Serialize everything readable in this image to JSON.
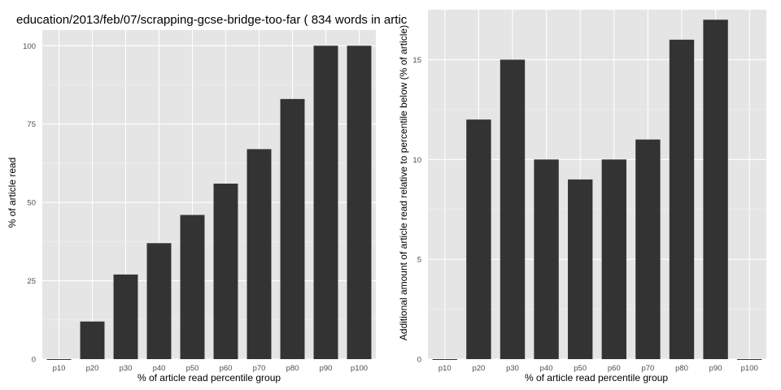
{
  "colors": {
    "panel_bg": "#e5e5e5",
    "grid_major": "#ffffff",
    "grid_minor": "#f2f2f2",
    "bar_fill": "#333333",
    "tick_text": "#4d4d4d"
  },
  "chart_data": [
    {
      "type": "bar",
      "title": "education/2013/feb/07/scrapping-gcse-bridge-too-far ( 834 words in artic",
      "xlabel": "% of article read percentile group",
      "ylabel": "% of article read",
      "categories": [
        "p10",
        "p20",
        "p30",
        "p40",
        "p50",
        "p60",
        "p70",
        "p80",
        "p90",
        "p100"
      ],
      "values": [
        0,
        12,
        27,
        37,
        46,
        56,
        67,
        83,
        100,
        100
      ],
      "ylim": [
        0,
        105
      ],
      "yticks": [
        0,
        25,
        50,
        75,
        100
      ],
      "grid": true,
      "legend": "none"
    },
    {
      "type": "bar",
      "title": "",
      "xlabel": "% of article read percentile group",
      "ylabel": "Additional amount of article read relative to percentile below (% of article)",
      "categories": [
        "p10",
        "p20",
        "p30",
        "p40",
        "p50",
        "p60",
        "p70",
        "p80",
        "p90",
        "p100"
      ],
      "values": [
        0,
        12,
        15,
        10,
        9,
        10,
        11,
        16,
        17,
        0
      ],
      "ylim": [
        0,
        17.5
      ],
      "yticks": [
        0,
        5,
        10,
        15
      ],
      "grid": true,
      "legend": "none"
    }
  ]
}
